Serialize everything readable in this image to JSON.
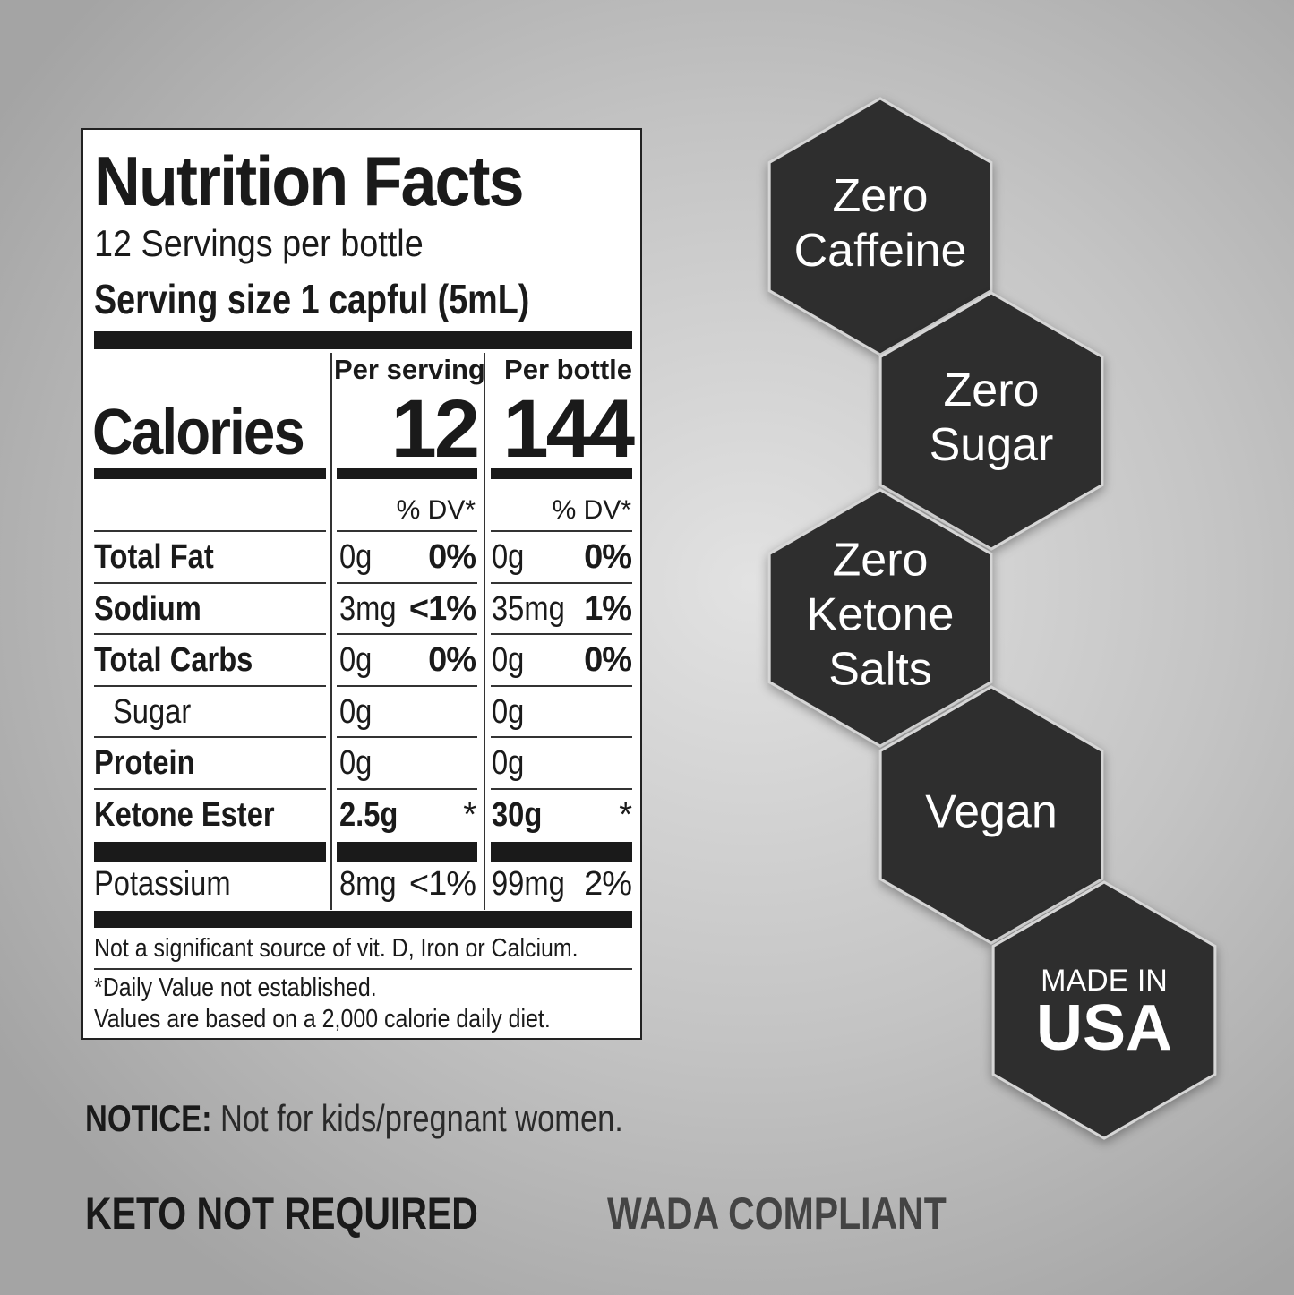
{
  "nutrition_facts": {
    "title": "Nutrition Facts",
    "servings": "12 Servings per bottle",
    "serving_size": "Serving size 1 capful (5mL)",
    "column_headers": [
      "Per serving",
      "Per bottle"
    ],
    "calories": {
      "label": "Calories",
      "per_serving": "12",
      "per_bottle": "144"
    },
    "dv_headers": [
      "% DV*",
      "% DV*"
    ],
    "rows": [
      {
        "name": "Total Fat",
        "serving_amount": "0g",
        "serving_dv": "0%",
        "bottle_amount": "0g",
        "bottle_dv": "0%"
      },
      {
        "name": "Sodium",
        "serving_amount": "3mg",
        "serving_dv": "<1%",
        "bottle_amount": "35mg",
        "bottle_dv": "1%"
      },
      {
        "name": "Total Carbs",
        "serving_amount": "0g",
        "serving_dv": "0%",
        "bottle_amount": "0g",
        "bottle_dv": "0%"
      },
      {
        "name": "Sugar",
        "serving_amount": "0g",
        "bottle_amount": "0g"
      },
      {
        "name": "Protein",
        "serving_amount": "0g",
        "bottle_amount": "0g"
      },
      {
        "name": "Ketone Ester",
        "serving_amount": "2.5g",
        "serving_dv": "*",
        "bottle_amount": "30g",
        "bottle_dv": "*"
      }
    ],
    "potassium": {
      "name": "Potassium",
      "serving_amount": "8mg",
      "serving_dv": "<1%",
      "bottle_amount": "99mg",
      "bottle_dv": "2%"
    },
    "footnote_1": "Not a significant source of vit. D, Iron or Calcium.",
    "footnote_2": "*Daily Value not established.",
    "footnote_3": "Values are based on a 2,000 calorie daily diet."
  },
  "badges": [
    {
      "lines": [
        "Zero",
        "Caffeine"
      ]
    },
    {
      "lines": [
        "Zero",
        "Sugar"
      ]
    },
    {
      "lines": [
        "Zero",
        "Ketone",
        "Salts"
      ]
    },
    {
      "lines": [
        "Vegan"
      ]
    },
    {
      "lines": [
        "MADE IN",
        "USA"
      ]
    }
  ],
  "notice": {
    "label": "NOTICE:",
    "text": "Not for kids/pregnant women."
  },
  "footer": [
    "KETO NOT REQUIRED",
    "WADA COMPLIANT"
  ]
}
